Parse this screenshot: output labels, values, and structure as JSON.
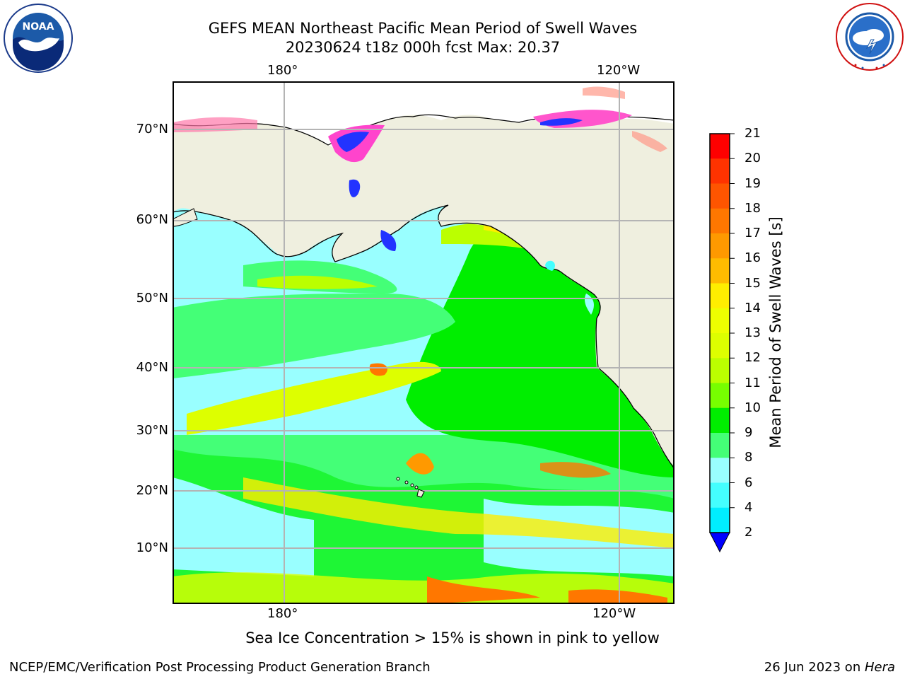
{
  "header": {
    "title": "GEFS MEAN Northeast Pacific Mean Period of Swell Waves",
    "subtitle": "20230624 t18z 000h fcst   Max: 20.37"
  },
  "map": {
    "top_lon_labels": [
      "180°",
      "120°W"
    ],
    "bottom_lon_labels": [
      "180°",
      "120°W"
    ],
    "lat_labels": [
      "70°N",
      "60°N",
      "50°N",
      "40°N",
      "30°N",
      "20°N",
      "10°N"
    ],
    "colors": {
      "land": "#efefdf",
      "grid": "#b4b4b4",
      "coast": "#000000"
    }
  },
  "colorbar": {
    "label": "Mean Period of Swell Waves [s]",
    "ticks": [
      "21",
      "20",
      "19",
      "18",
      "17",
      "16",
      "15",
      "14",
      "13",
      "12",
      "11",
      "10",
      "9",
      "8",
      "6",
      "4",
      "2"
    ],
    "colors": [
      "#ff0000",
      "#ff3300",
      "#ff5500",
      "#ff7700",
      "#ff9900",
      "#ffbb00",
      "#ffee00",
      "#eeff00",
      "#ddff00",
      "#bbff00",
      "#77ff00",
      "#00ee00",
      "#44ff77",
      "#99ffff",
      "#44ffff",
      "#00eeff",
      "#0077ff",
      "#0000ff"
    ]
  },
  "caption": "Sea Ice Concentration > 15% is shown in pink to yellow",
  "footer": {
    "left": "NCEP/EMC/Verification Post Processing Product Generation Branch",
    "right_prefix": "26 Jun 2023 on ",
    "right_system": "Hera"
  },
  "logos": {
    "left": "NOAA",
    "right": "NATIONAL WEATHER SERVICE"
  }
}
